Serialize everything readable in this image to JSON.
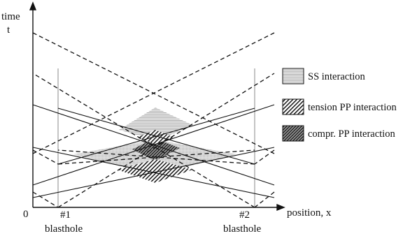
{
  "axes": {
    "y_label_line1": "time",
    "y_label_line2": "t",
    "x_label": "position, x",
    "origin": "0"
  },
  "blastholes": [
    {
      "id": "#1",
      "label": "blasthole"
    },
    {
      "id": "#2",
      "label": "blasthole"
    }
  ],
  "legend": [
    {
      "label": "SS interaction",
      "pattern": "horizontal-lines"
    },
    {
      "label": "tension PP interaction",
      "pattern": "diagonal-lines"
    },
    {
      "label": "compr. PP interaction",
      "pattern": "dense-diagonal-lines"
    }
  ],
  "colors": {
    "ink": "#111111",
    "guide": "#888888",
    "fill_light": "#c8c8c8"
  }
}
